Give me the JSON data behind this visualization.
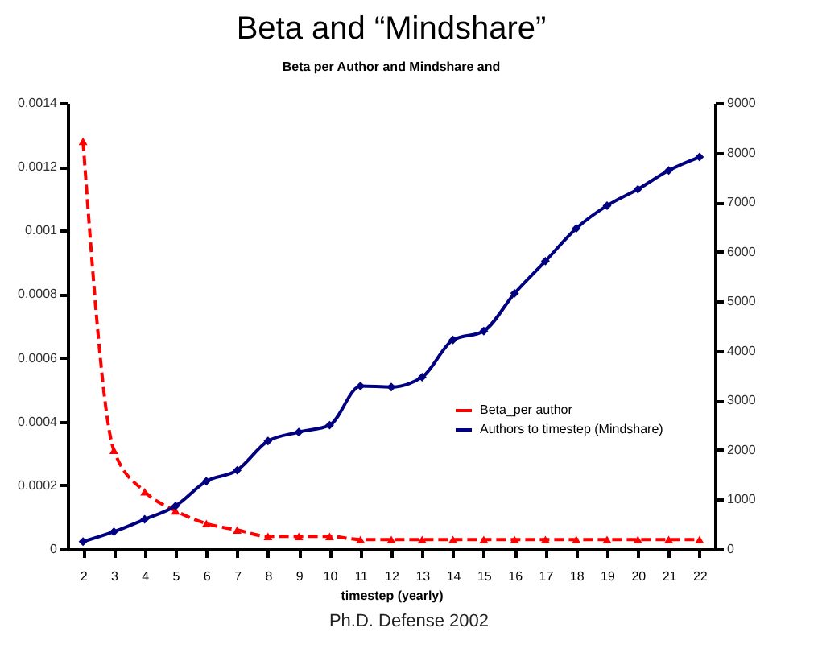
{
  "chart_data": {
    "type": "line",
    "title": "Beta and “Mindshare”",
    "subtitle": "Beta per Author and Mindshare and",
    "xlabel": "timestep (yearly)",
    "categories": [
      "2",
      "3",
      "4",
      "5",
      "6",
      "7",
      "8",
      "9",
      "10",
      "11",
      "12",
      "13",
      "14",
      "15",
      "16",
      "17",
      "18",
      "19",
      "20",
      "21",
      "22"
    ],
    "series": [
      {
        "name": "Beta_per author",
        "color": "#ff0000",
        "marker": "triangle",
        "line_style": "dashed",
        "values": [
          0.00128,
          0.00031,
          0.00018,
          0.00012,
          8e-05,
          6e-05,
          4e-05,
          4e-05,
          4e-05,
          3e-05,
          3e-05,
          3e-05,
          3e-05,
          3e-05,
          3e-05,
          3e-05,
          3e-05,
          3e-05,
          3e-05,
          3e-05,
          3e-05
        ]
      },
      {
        "name": "Authors to timestep (Mindshare)",
        "color": "#000080",
        "marker": "diamond",
        "line_style": "solid",
        "axis": "y2",
        "values": [
          150,
          350,
          600,
          870,
          1370,
          1590,
          2180,
          2360,
          2500,
          3290,
          3270,
          3470,
          4220,
          4400,
          5160,
          5810,
          6470,
          6930,
          7260,
          7640,
          7910
        ]
      }
    ],
    "ylim": [
      0,
      0.0014
    ],
    "yticks": [
      0,
      0.0002,
      0.0004,
      0.0006,
      0.0008,
      0.001,
      0.0012,
      0.0014
    ],
    "y2lim": [
      0,
      9000
    ],
    "y2ticks": [
      0,
      1000,
      2000,
      3000,
      4000,
      5000,
      6000,
      7000,
      8000,
      9000
    ],
    "grid": false,
    "legend": "bottom right",
    "annotations": [
      "Ph.D. Defense 2002"
    ]
  }
}
